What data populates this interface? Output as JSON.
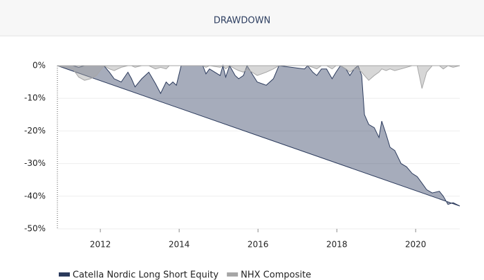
{
  "chart_data": {
    "type": "area",
    "title": "DRAWDOWN",
    "x": [
      2010.91,
      2011.3,
      2011.45,
      2011.6,
      2011.75,
      2011.9,
      2012.09,
      2012.23,
      2012.35,
      2012.53,
      2012.7,
      2012.79,
      2012.88,
      2013.05,
      2013.23,
      2013.4,
      2013.53,
      2013.67,
      2013.75,
      2013.84,
      2013.93,
      2014.05,
      2014.6,
      2014.68,
      2014.77,
      2015.04,
      2015.11,
      2015.18,
      2015.28,
      2015.42,
      2015.51,
      2015.63,
      2015.72,
      2015.98,
      2016.21,
      2016.39,
      2016.53,
      2017.18,
      2017.26,
      2017.39,
      2017.49,
      2017.61,
      2017.74,
      2017.88,
      2017.98,
      2018.09,
      2018.23,
      2018.33,
      2018.44,
      2018.54,
      2018.63,
      2018.7,
      2018.81,
      2018.95,
      2019.07,
      2019.14,
      2019.25,
      2019.35,
      2019.47,
      2019.63,
      2019.77,
      2019.91,
      2020.04,
      2020.16,
      2020.28,
      2020.42,
      2020.6,
      2020.7,
      2020.82,
      2020.95,
      2021.12
    ],
    "series": [
      {
        "name": "Catella Nordic Long Short Equity",
        "color": "#2b3a5c",
        "values": [
          0,
          0,
          -0.5,
          0,
          0,
          0,
          0,
          -2,
          -4,
          -5,
          -2,
          -4,
          -6.5,
          -4,
          -2,
          -5.5,
          -8.5,
          -5,
          -6,
          -5,
          -6,
          0,
          0,
          -2.5,
          -1,
          -3,
          0,
          -3.5,
          0,
          -3,
          -4,
          -3,
          0,
          -5,
          -6,
          -4,
          0,
          -1,
          0,
          -2,
          -3,
          -1,
          -1,
          -4,
          -2,
          0,
          -1,
          -3,
          -1,
          0,
          -3,
          -15,
          -18,
          -19,
          -22,
          -17,
          -21,
          -25,
          -26,
          -30,
          -31,
          -33,
          -34,
          -36,
          -38,
          -39,
          -38.5,
          -40,
          -42.5,
          -42,
          -43
        ]
      },
      {
        "name": "NHX Composite",
        "color": "#a6a6a6",
        "values": [
          0,
          -1,
          -3.5,
          -4.5,
          -4,
          -3,
          0,
          -1,
          -1.5,
          -0.5,
          0,
          0,
          -0.5,
          0,
          0,
          -1,
          -0.5,
          -1,
          0,
          0,
          0,
          0,
          0,
          -0.5,
          0,
          -0.5,
          0,
          -1,
          0,
          -1,
          -1.5,
          -2,
          -1,
          -3,
          -2,
          -1,
          0,
          0,
          0,
          -0.5,
          -1,
          0,
          0,
          -1,
          0,
          0,
          -1,
          -2,
          -1,
          -1,
          -2,
          -3,
          -4.5,
          -3,
          -2,
          -1,
          -1.5,
          -1,
          -1.5,
          -1,
          -0.5,
          0,
          0,
          -7,
          -2,
          0,
          0,
          -1,
          0,
          -0.5,
          0
        ]
      }
    ],
    "xlim": [
      2010.91,
      2021.12
    ],
    "xticks": [
      2012,
      2014,
      2016,
      2018,
      2020
    ],
    "ylim": [
      -50,
      0
    ],
    "yticks": [
      {
        "value": 0,
        "label": "0%"
      },
      {
        "value": -10,
        "label": "-10%"
      },
      {
        "value": -20,
        "label": "-20%"
      },
      {
        "value": -30,
        "label": "-30%"
      },
      {
        "value": -40,
        "label": "-40%"
      },
      {
        "value": -50,
        "label": "-50%"
      }
    ],
    "grid": true,
    "legend": "bottom-left"
  }
}
